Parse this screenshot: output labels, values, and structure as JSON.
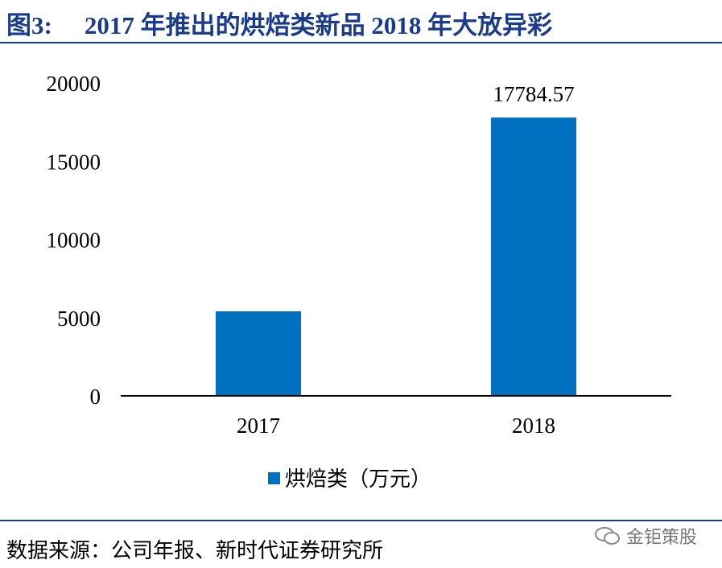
{
  "figure": {
    "title_number": "图3:",
    "title_text": "2017 年推出的烘焙类新品 2018 年大放异彩",
    "source": "数据来源：公司年报、新时代证券研究所",
    "watermark": "金钜策股"
  },
  "colors": {
    "bar": "#0070c0",
    "title": "#1a3a8a",
    "axis": "#000000"
  },
  "chart_data": {
    "type": "bar",
    "categories": [
      "2017",
      "2018"
    ],
    "series": [
      {
        "name": "烘焙类（万元）",
        "values": [
          5400,
          17784.57
        ]
      }
    ],
    "data_labels": [
      "",
      "17784.57"
    ],
    "ylim": [
      0,
      20000
    ],
    "yticks": [
      0,
      5000,
      10000,
      15000,
      20000
    ],
    "grid": false,
    "legend": "bottom-center",
    "title": "",
    "xlabel": "",
    "ylabel": ""
  }
}
